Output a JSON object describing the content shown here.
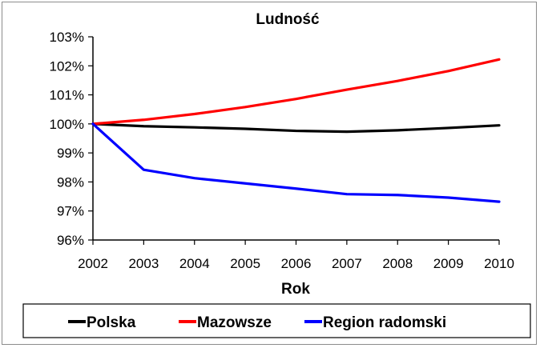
{
  "chart_data": {
    "type": "line",
    "title": "Ludność",
    "xlabel": "Rok",
    "ylabel": "",
    "x": [
      2002,
      2003,
      2004,
      2005,
      2006,
      2007,
      2008,
      2009,
      2010
    ],
    "ylim": [
      96,
      103
    ],
    "yticks": [
      96,
      97,
      98,
      99,
      100,
      101,
      102,
      103
    ],
    "ytick_suffix": "%",
    "grid": false,
    "legend_position": "bottom",
    "series": [
      {
        "name": "Polska",
        "color": "#000000",
        "values": [
          100.0,
          99.92,
          99.88,
          99.83,
          99.76,
          99.73,
          99.78,
          99.86,
          99.95
        ]
      },
      {
        "name": "Mazowsze",
        "color": "#ff0000",
        "values": [
          100.0,
          100.14,
          100.34,
          100.58,
          100.86,
          101.18,
          101.48,
          101.82,
          102.22
        ]
      },
      {
        "name": "Region radomski",
        "color": "#0000ff",
        "values": [
          100.0,
          98.42,
          98.13,
          97.95,
          97.77,
          97.58,
          97.55,
          97.46,
          97.32
        ]
      }
    ]
  }
}
